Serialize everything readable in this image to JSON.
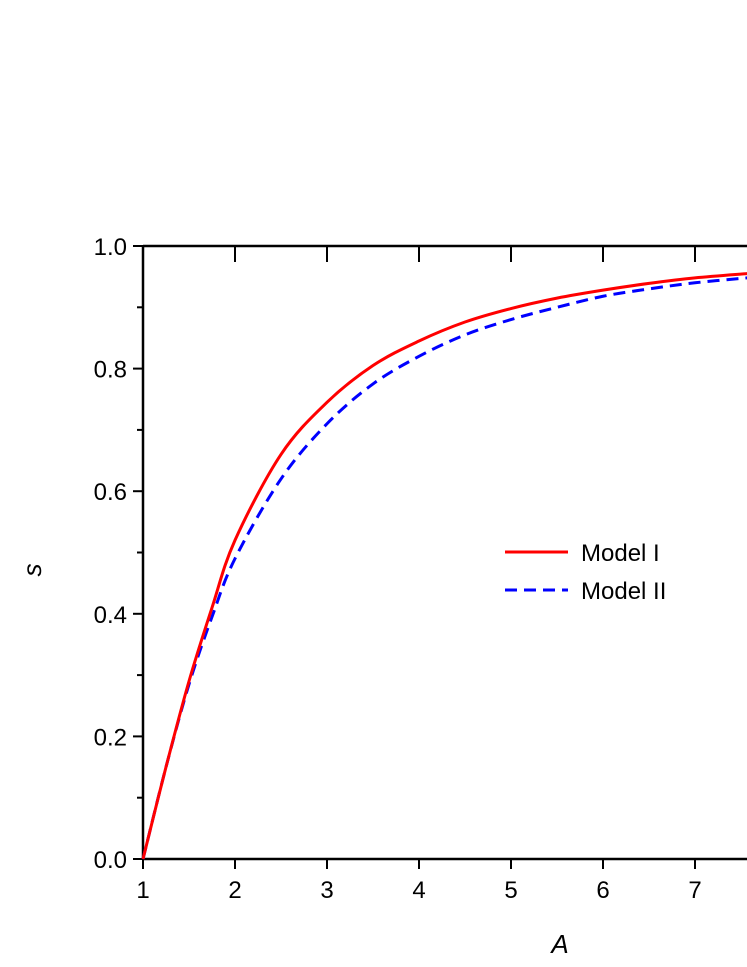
{
  "chart_data": {
    "type": "line",
    "title": "",
    "xlabel": "A",
    "ylabel": "s",
    "xlim": [
      1,
      7.57
    ],
    "ylim": [
      0,
      1.0
    ],
    "xticks": [
      "1",
      "2",
      "3",
      "4",
      "5",
      "6",
      "7"
    ],
    "yticks": [
      "0.0",
      "0.2",
      "0.4",
      "0.6",
      "0.8",
      "1.0"
    ],
    "grid": false,
    "legend_position": "center-right",
    "x": [
      1,
      1.25,
      1.5,
      1.75,
      2,
      2.5,
      3,
      3.5,
      4,
      4.5,
      5,
      5.5,
      6,
      6.5,
      7,
      7.57
    ],
    "series": [
      {
        "name": "Model I",
        "color": "#ff0000",
        "style": "solid",
        "values": [
          0,
          0.15,
          0.29,
          0.41,
          0.52,
          0.66,
          0.745,
          0.805,
          0.845,
          0.876,
          0.898,
          0.915,
          0.928,
          0.939,
          0.948,
          0.955
        ]
      },
      {
        "name": "Model II",
        "color": "#0000ff",
        "style": "dashed",
        "values": [
          0,
          0.15,
          0.285,
          0.395,
          0.49,
          0.62,
          0.71,
          0.775,
          0.82,
          0.855,
          0.88,
          0.9,
          0.918,
          0.93,
          0.94,
          0.948
        ]
      }
    ]
  }
}
